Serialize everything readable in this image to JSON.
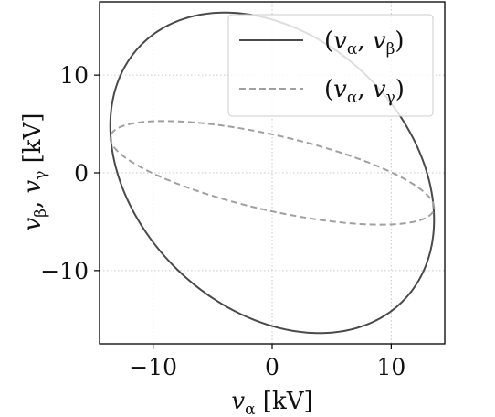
{
  "chart_data": {
    "type": "line",
    "xlabel_main": "v",
    "xlabel_sub": "α",
    "xlabel_unit": " [kV]",
    "ylabel_main1": "v",
    "ylabel_sub1": "β",
    "ylabel_sep": ", ",
    "ylabel_main2": "v",
    "ylabel_sub2": "γ",
    "ylabel_unit": " [kV]",
    "xlim": [
      -14.5,
      14.5
    ],
    "ylim": [
      -17.5,
      17.5
    ],
    "xticks": [
      -10,
      0,
      10
    ],
    "yticks": [
      -10,
      0,
      10
    ],
    "xtick_labels": [
      "−10",
      "0",
      "10"
    ],
    "ytick_labels": [
      "−10",
      "0",
      "10"
    ],
    "grid": true,
    "legend_position": "top-right",
    "series": [
      {
        "name": "(vα, vβ)",
        "legend_paren_open": "(",
        "legend_v1": "v",
        "legend_s1": "α",
        "legend_comma": ", ",
        "legend_v2": "v",
        "legend_s2": "β",
        "legend_paren_close": ")",
        "style": "solid",
        "color": "#4a4a4a",
        "amplitude_x": 13.6,
        "amplitude_y": 16.4,
        "phase_offset_deg": 107
      },
      {
        "name": "(vα, vγ)",
        "legend_paren_open": "(",
        "legend_v1": "v",
        "legend_s1": "α",
        "legend_comma": ", ",
        "legend_v2": "v",
        "legend_s2": "γ",
        "legend_paren_close": ")",
        "style": "dashed",
        "color": "#a0a0a0",
        "amplitude_x": 13.6,
        "amplitude_y": 5.3,
        "phase_offset_deg": 132
      }
    ]
  }
}
